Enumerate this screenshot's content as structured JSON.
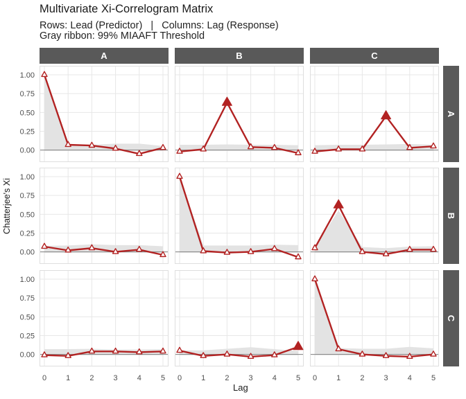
{
  "chart_data": {
    "type": "line",
    "title": "Multivariate Xi-Correlogram Matrix",
    "subtitle_line1": "Rows: Lead (Predictor)   |   Columns: Lag (Response)",
    "subtitle_line2": "Gray ribbon: 99% MIAAFT Threshold",
    "xlabel": "Lag",
    "ylabel": "Chatterjee's Xi",
    "x": [
      0,
      1,
      2,
      3,
      4,
      5
    ],
    "x_tick_labels": [
      "0",
      "1",
      "2",
      "3",
      "4",
      "5"
    ],
    "y_tick_labels": [
      "1.00",
      "0.75",
      "0.50",
      "0.25",
      "0.00"
    ],
    "y_tick_values": [
      1.0,
      0.75,
      0.5,
      0.25,
      0.0
    ],
    "ylim": [
      -0.16,
      1.12
    ],
    "row_labels": [
      "A",
      "B",
      "C"
    ],
    "col_labels": [
      "A",
      "B",
      "C"
    ],
    "legend": "none",
    "grid": "major-only",
    "panels": [
      {
        "row": "A",
        "col": "A",
        "xi": [
          1.0,
          0.07,
          0.06,
          0.02,
          -0.05,
          0.03
        ],
        "threshold_upper": [
          1.0,
          0.07,
          0.07,
          0.085,
          0.085,
          0.055
        ],
        "threshold_lower": [
          -0.01,
          -0.01,
          -0.01,
          -0.01,
          -0.01,
          -0.01
        ],
        "significant_lags": []
      },
      {
        "row": "A",
        "col": "B",
        "xi": [
          -0.02,
          0.01,
          0.63,
          0.04,
          0.03,
          -0.04
        ],
        "threshold_upper": [
          0.07,
          0.07,
          0.075,
          0.07,
          0.07,
          0.065
        ],
        "threshold_lower": [
          -0.01,
          -0.01,
          -0.01,
          -0.01,
          -0.01,
          -0.01
        ],
        "significant_lags": [
          2
        ]
      },
      {
        "row": "A",
        "col": "C",
        "xi": [
          -0.02,
          0.01,
          0.01,
          0.45,
          0.03,
          0.05
        ],
        "threshold_upper": [
          0.065,
          0.07,
          0.07,
          0.075,
          0.08,
          0.07
        ],
        "threshold_lower": [
          -0.01,
          -0.01,
          -0.01,
          -0.01,
          -0.01,
          -0.01
        ],
        "significant_lags": [
          3
        ]
      },
      {
        "row": "B",
        "col": "A",
        "xi": [
          0.07,
          0.02,
          0.05,
          0.0,
          0.03,
          -0.04
        ],
        "threshold_upper": [
          0.08,
          0.085,
          0.1,
          0.09,
          0.09,
          0.075
        ],
        "threshold_lower": [
          -0.01,
          -0.01,
          -0.01,
          -0.01,
          -0.01,
          -0.01
        ],
        "significant_lags": []
      },
      {
        "row": "B",
        "col": "B",
        "xi": [
          1.0,
          0.01,
          -0.01,
          0.0,
          0.04,
          -0.07
        ],
        "threshold_upper": [
          1.0,
          0.085,
          0.085,
          0.085,
          0.095,
          0.09
        ],
        "threshold_lower": [
          -0.01,
          -0.01,
          -0.01,
          -0.01,
          -0.01,
          -0.01
        ],
        "significant_lags": []
      },
      {
        "row": "B",
        "col": "C",
        "xi": [
          0.05,
          0.62,
          0.0,
          -0.03,
          0.03,
          0.03
        ],
        "threshold_upper": [
          0.06,
          0.55,
          0.065,
          0.05,
          0.07,
          0.075
        ],
        "threshold_lower": [
          -0.01,
          -0.01,
          -0.01,
          -0.01,
          -0.01,
          -0.01
        ],
        "significant_lags": [
          1
        ]
      },
      {
        "row": "C",
        "col": "A",
        "xi": [
          -0.01,
          -0.02,
          0.04,
          0.04,
          0.03,
          0.04
        ],
        "threshold_upper": [
          0.07,
          0.07,
          0.075,
          0.065,
          0.065,
          0.07
        ],
        "threshold_lower": [
          -0.01,
          -0.01,
          -0.01,
          -0.01,
          -0.01,
          -0.01
        ],
        "significant_lags": []
      },
      {
        "row": "C",
        "col": "B",
        "xi": [
          0.05,
          -0.02,
          0.0,
          -0.03,
          -0.01,
          0.1
        ],
        "threshold_upper": [
          0.055,
          0.055,
          0.075,
          0.095,
          0.07,
          0.045
        ],
        "threshold_lower": [
          -0.01,
          -0.01,
          -0.01,
          -0.01,
          -0.01,
          -0.01
        ],
        "significant_lags": [
          5
        ]
      },
      {
        "row": "C",
        "col": "C",
        "xi": [
          1.0,
          0.07,
          0.0,
          -0.02,
          -0.03,
          0.0
        ],
        "threshold_upper": [
          1.0,
          0.085,
          0.075,
          0.075,
          0.1,
          0.08
        ],
        "threshold_lower": [
          -0.01,
          -0.01,
          -0.01,
          -0.01,
          -0.01,
          -0.01
        ],
        "significant_lags": []
      }
    ],
    "colors": {
      "line": "#B22222",
      "marker_fill_open": "#FFFFFF",
      "ribbon": "#E3E3E3",
      "strip_bg": "#595959",
      "strip_text": "#FFFFFF",
      "zero_line": "#7F7F7F",
      "grid_major": "#E7E7E7",
      "panel_border": "#DEDEDE",
      "tick_text": "#4D4D4D",
      "title_text": "#1A1A1A"
    }
  }
}
